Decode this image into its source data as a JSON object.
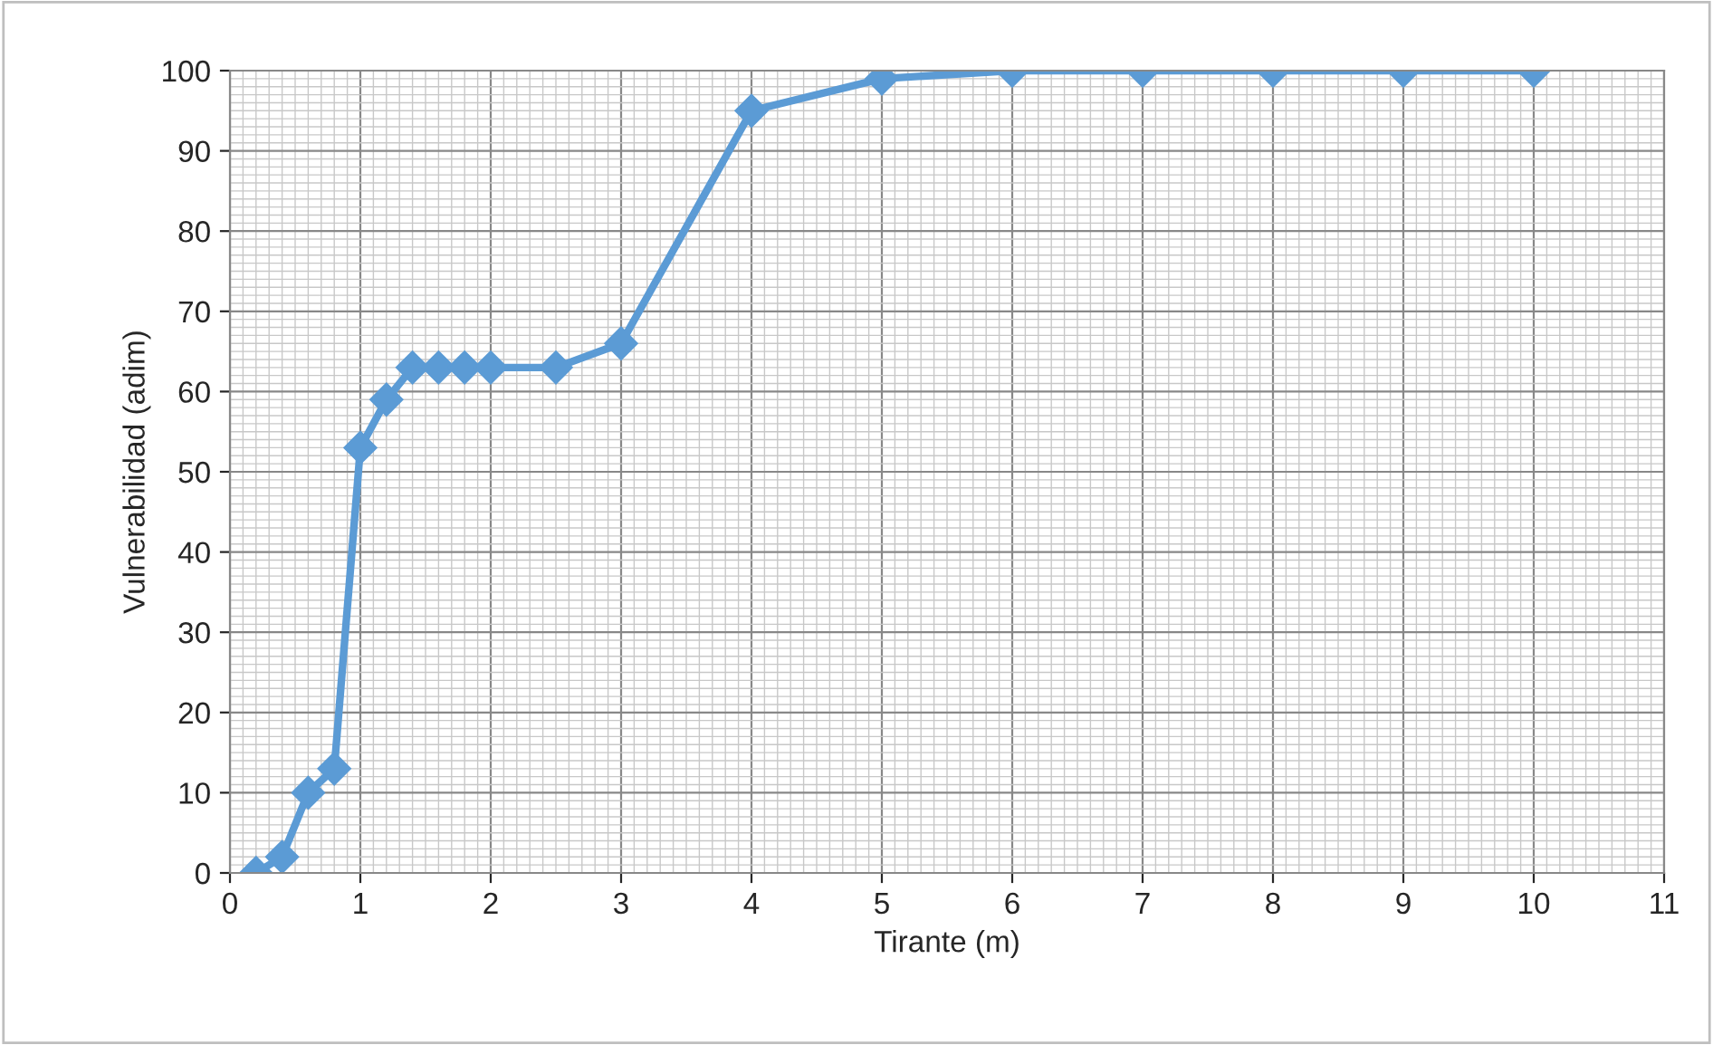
{
  "chart_data": {
    "type": "line",
    "xlabel": "Tirante (m)",
    "ylabel": "Vulnerabilidad (adim)",
    "x": [
      0.2,
      0.4,
      0.6,
      0.8,
      1.0,
      1.2,
      1.4,
      1.6,
      1.8,
      2.0,
      2.5,
      3,
      4,
      5,
      6,
      7,
      8,
      9,
      10
    ],
    "series": [
      {
        "color": "#5b9bd5",
        "values": [
          0,
          2,
          10,
          13,
          53,
          59,
          63,
          63,
          63,
          63,
          63,
          66,
          95,
          99,
          100,
          100,
          100,
          100,
          100
        ]
      }
    ],
    "xlim": [
      0,
      11
    ],
    "xticks": [
      0,
      1,
      2,
      3,
      4,
      5,
      6,
      7,
      8,
      9,
      10,
      11
    ],
    "ylim": [
      0,
      100
    ],
    "yticks": [
      0,
      10,
      20,
      30,
      40,
      50,
      60,
      70,
      80,
      90,
      100
    ],
    "grid": true,
    "marker": "diamond",
    "line_style": "solid",
    "legend": false
  }
}
